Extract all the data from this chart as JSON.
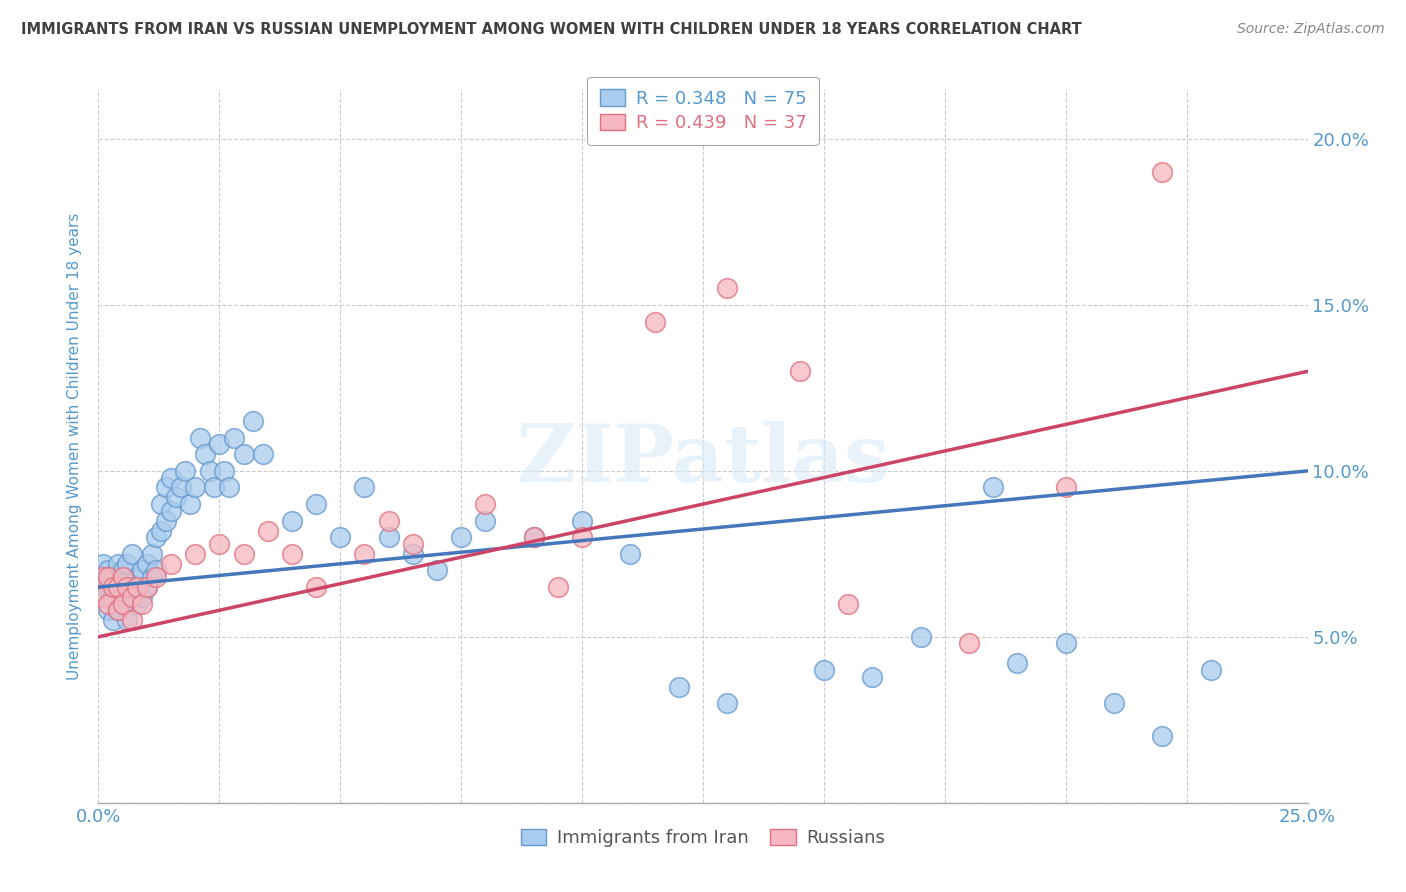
{
  "title": "IMMIGRANTS FROM IRAN VS RUSSIAN UNEMPLOYMENT AMONG WOMEN WITH CHILDREN UNDER 18 YEARS CORRELATION CHART",
  "source": "Source: ZipAtlas.com",
  "ylabel": "Unemployment Among Women with Children Under 18 years",
  "xlim": [
    0.0,
    0.25
  ],
  "ylim": [
    0.0,
    0.215
  ],
  "iran_color": "#aaccee",
  "iran_edge": "#6699cc",
  "russia_color": "#f5b8c0",
  "russia_edge": "#e07080",
  "iran_R": "0.348",
  "iran_N": "75",
  "russia_R": "0.439",
  "russia_N": "37",
  "iran_trend_x": [
    0.0,
    0.25
  ],
  "iran_trend_y": [
    0.065,
    0.1
  ],
  "russia_trend_x": [
    0.0,
    0.25
  ],
  "russia_trend_y": [
    0.05,
    0.13
  ],
  "iran_x": [
    0.001,
    0.001,
    0.001,
    0.002,
    0.002,
    0.002,
    0.003,
    0.003,
    0.003,
    0.004,
    0.004,
    0.004,
    0.005,
    0.005,
    0.005,
    0.006,
    0.006,
    0.006,
    0.007,
    0.007,
    0.008,
    0.008,
    0.009,
    0.009,
    0.01,
    0.01,
    0.011,
    0.011,
    0.012,
    0.012,
    0.013,
    0.013,
    0.014,
    0.014,
    0.015,
    0.015,
    0.016,
    0.017,
    0.018,
    0.019,
    0.02,
    0.021,
    0.022,
    0.023,
    0.024,
    0.025,
    0.026,
    0.027,
    0.028,
    0.03,
    0.032,
    0.034,
    0.04,
    0.045,
    0.05,
    0.055,
    0.06,
    0.065,
    0.07,
    0.075,
    0.08,
    0.09,
    0.1,
    0.11,
    0.12,
    0.13,
    0.15,
    0.16,
    0.17,
    0.185,
    0.19,
    0.2,
    0.21,
    0.22,
    0.23
  ],
  "iran_y": [
    0.065,
    0.068,
    0.072,
    0.058,
    0.065,
    0.07,
    0.055,
    0.062,
    0.068,
    0.058,
    0.065,
    0.072,
    0.06,
    0.065,
    0.07,
    0.055,
    0.065,
    0.072,
    0.075,
    0.065,
    0.068,
    0.06,
    0.062,
    0.07,
    0.065,
    0.072,
    0.068,
    0.075,
    0.07,
    0.08,
    0.082,
    0.09,
    0.085,
    0.095,
    0.088,
    0.098,
    0.092,
    0.095,
    0.1,
    0.09,
    0.095,
    0.11,
    0.105,
    0.1,
    0.095,
    0.108,
    0.1,
    0.095,
    0.11,
    0.105,
    0.115,
    0.105,
    0.085,
    0.09,
    0.08,
    0.095,
    0.08,
    0.075,
    0.07,
    0.08,
    0.085,
    0.08,
    0.085,
    0.075,
    0.035,
    0.03,
    0.04,
    0.038,
    0.05,
    0.095,
    0.042,
    0.048,
    0.03,
    0.02,
    0.04
  ],
  "russia_x": [
    0.001,
    0.001,
    0.002,
    0.002,
    0.003,
    0.004,
    0.004,
    0.005,
    0.005,
    0.006,
    0.007,
    0.007,
    0.008,
    0.009,
    0.01,
    0.012,
    0.015,
    0.02,
    0.025,
    0.03,
    0.035,
    0.04,
    0.045,
    0.055,
    0.06,
    0.065,
    0.08,
    0.09,
    0.095,
    0.1,
    0.115,
    0.13,
    0.145,
    0.155,
    0.18,
    0.2,
    0.22
  ],
  "russia_y": [
    0.062,
    0.068,
    0.06,
    0.068,
    0.065,
    0.058,
    0.065,
    0.06,
    0.068,
    0.065,
    0.055,
    0.062,
    0.065,
    0.06,
    0.065,
    0.068,
    0.072,
    0.075,
    0.078,
    0.075,
    0.082,
    0.075,
    0.065,
    0.075,
    0.085,
    0.078,
    0.09,
    0.08,
    0.065,
    0.08,
    0.145,
    0.155,
    0.13,
    0.06,
    0.048,
    0.095,
    0.19
  ],
  "watermark": "ZIPatlas",
  "background_color": "#ffffff",
  "grid_color": "#cccccc",
  "title_color": "#404040",
  "tick_label_color": "#5599cc"
}
